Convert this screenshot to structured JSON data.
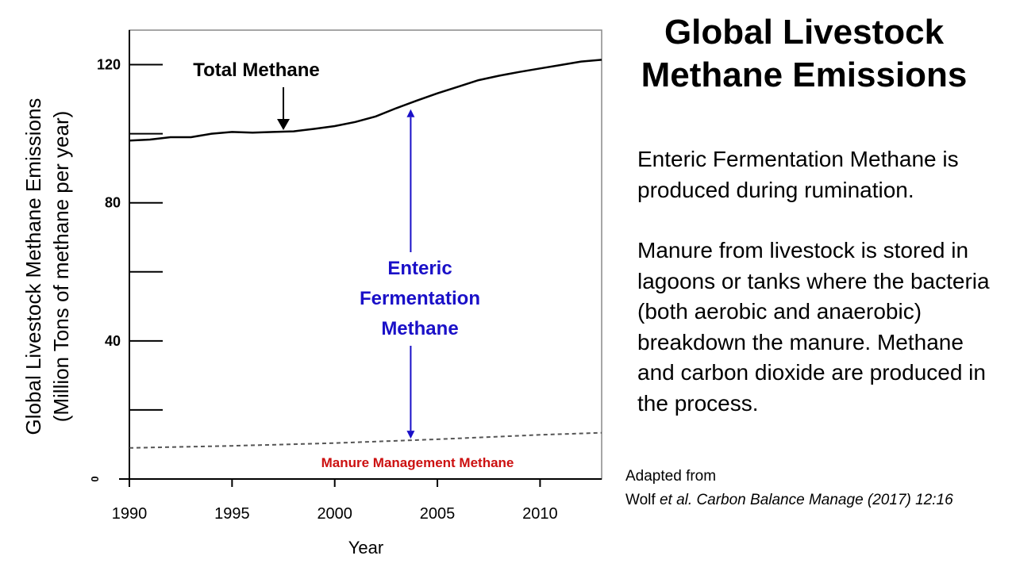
{
  "slide": {
    "title_line1": "Global Livestock",
    "title_line2": "Methane Emissions",
    "paragraph1": "Enteric Fermentation Methane is produced during rumination.",
    "paragraph2": "Manure from livestock is stored in lagoons or tanks where the bacteria (both aerobic and anaerobic) breakdown the manure.  Methane and carbon dioxide are produced in the process.",
    "credit_line1": "Adapted from",
    "credit_author": "Wolf",
    "credit_etal": "et al.",
    "credit_rest": "Carbon Balance Manage (2017) 12:16"
  },
  "chart_data": {
    "type": "line",
    "xlabel": "Year",
    "ylabel_line1": "Global Livestock Methane Emissions",
    "ylabel_line2": "(Million Tons of methane per year)",
    "xlim": [
      1990,
      2013
    ],
    "ylim": [
      0,
      130
    ],
    "x_ticks": [
      1990,
      1995,
      2000,
      2005,
      2010
    ],
    "y_ticks": [
      0,
      20,
      40,
      60,
      80,
      100,
      120
    ],
    "y_tick_labels": [
      {
        "value": 0,
        "label": "0"
      },
      {
        "value": 40,
        "label": "40"
      },
      {
        "value": 80,
        "label": "80"
      },
      {
        "value": 120,
        "label": "120"
      }
    ],
    "series": [
      {
        "name": "Total Methane",
        "style": "solid",
        "color": "#000000",
        "x": [
          1990,
          1991,
          1992,
          1993,
          1994,
          1995,
          1996,
          1997,
          1998,
          1999,
          2000,
          2001,
          2002,
          2003,
          2004,
          2005,
          2006,
          2007,
          2008,
          2009,
          2010,
          2011,
          2012,
          2013
        ],
        "values": [
          98.0,
          98.3,
          99.0,
          99.0,
          100.0,
          100.5,
          100.3,
          100.5,
          100.7,
          101.4,
          102.2,
          103.4,
          105.0,
          107.4,
          109.6,
          111.7,
          113.6,
          115.5,
          116.8,
          117.9,
          118.9,
          119.9,
          120.9,
          121.4
        ]
      },
      {
        "name": "Manure Management Methane",
        "style": "dashed",
        "color": "#555555",
        "x": [
          1990,
          1995,
          2000,
          2005,
          2010,
          2013
        ],
        "values": [
          9.0,
          9.6,
          10.4,
          11.5,
          12.8,
          13.4
        ]
      }
    ],
    "annotations": {
      "total_label": "Total  Methane",
      "total_arrow_year": 1997.5,
      "enteric_line1": "Enteric",
      "enteric_line2": "Fermentation",
      "enteric_line3": "Methane",
      "enteric_arrow_year": 2003.7,
      "manure_label": "Manure Management Methane"
    },
    "colors": {
      "enteric": "#1a10c8",
      "manure_label": "#cc1010",
      "axis": "#000000"
    }
  }
}
